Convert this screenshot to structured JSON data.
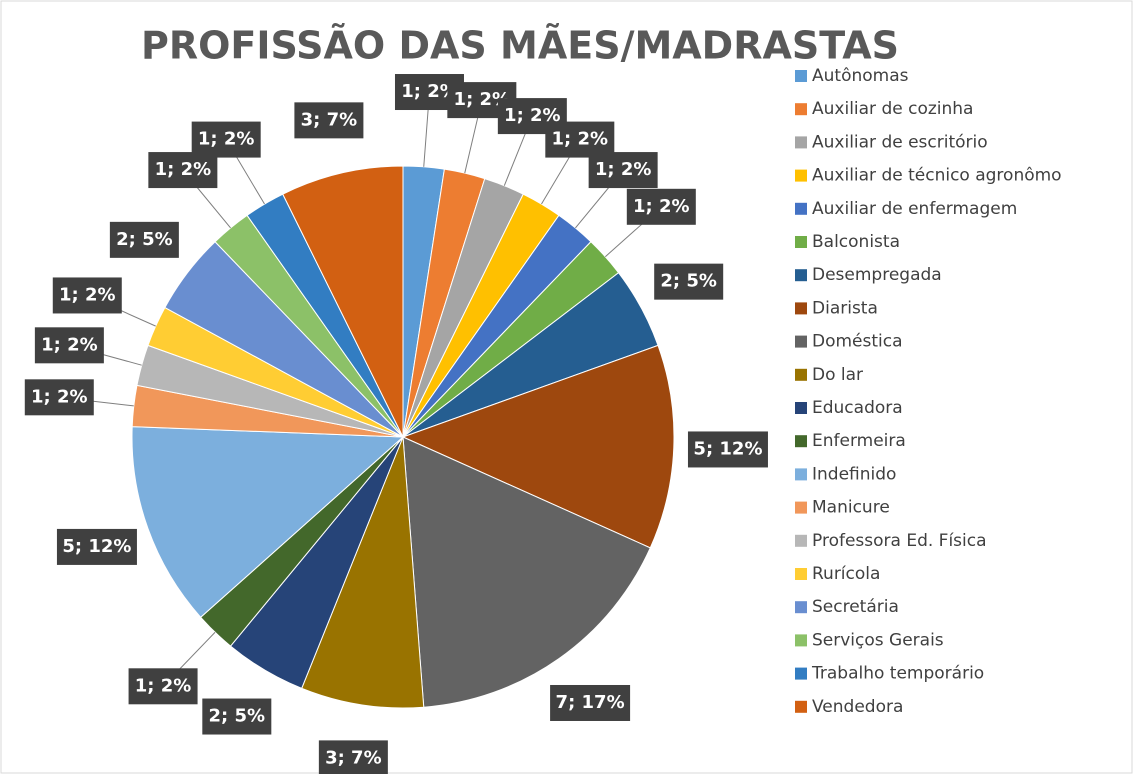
{
  "chart_data": {
    "type": "pie",
    "title": "PROFISSÃO DAS MÃES/MADRASTAS",
    "categories": [
      "Autônomas",
      "Auxiliar de cozinha",
      "Auxiliar de escritório",
      "Auxiliar de técnico agronômo",
      "Auxiliar de enfermagem",
      "Balconista",
      "Desempregada",
      "Diarista",
      "Doméstica",
      "Do lar",
      "Educadora",
      "Enfermeira",
      "Indefinido",
      "Manicure",
      "Professora Ed. Física",
      "Rurícola",
      "Secretária",
      "Serviços Gerais",
      "Trabalho temporário",
      "Vendedora"
    ],
    "values": [
      1,
      1,
      1,
      1,
      1,
      1,
      2,
      5,
      7,
      3,
      2,
      1,
      5,
      1,
      1,
      1,
      2,
      1,
      1,
      3
    ],
    "value_labels": [
      "1; 2%",
      "1; 2%",
      "1; 2%",
      "1; 2%",
      "1; 2%",
      "1; 2%",
      "2; 5%",
      "5; 12%",
      "7; 17%",
      "3; 7%",
      "2; 5%",
      "1; 2%",
      "5; 12%",
      "1; 2%",
      "1; 2%",
      "1; 2%",
      "2; 5%",
      "1; 2%",
      "1; 2%",
      "3; 7%"
    ],
    "colors": [
      "#5b9bd5",
      "#ed7d31",
      "#a5a5a5",
      "#ffc000",
      "#4472c4",
      "#70ad47",
      "#255e91",
      "#9e480e",
      "#636363",
      "#997300",
      "#264478",
      "#43682b",
      "#7cafdd",
      "#f1975a",
      "#b7b7b7",
      "#ffcd33",
      "#698ed0",
      "#8cc168",
      "#327dc2",
      "#d26012"
    ],
    "legend": "right"
  }
}
